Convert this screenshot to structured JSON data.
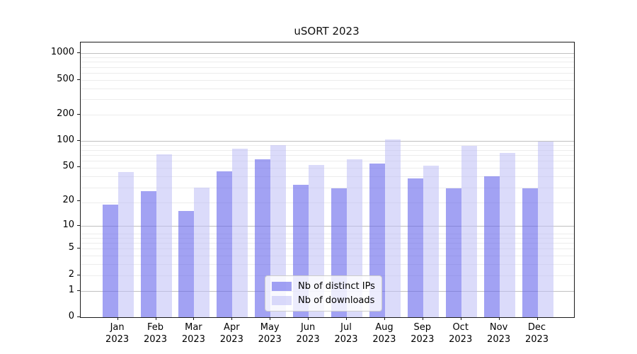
{
  "chart_data": {
    "type": "bar",
    "title": "uSORT 2023",
    "categories": [
      "Jan",
      "Feb",
      "Mar",
      "Apr",
      "May",
      "Jun",
      "Jul",
      "Aug",
      "Sep",
      "Oct",
      "Nov",
      "Dec"
    ],
    "year_label": "2023",
    "series": [
      {
        "name": "Nb of distinct IPs",
        "color": "rgba(100,100,235,0.6)",
        "values": [
          18,
          26,
          15,
          45,
          62,
          31,
          28,
          55,
          37,
          28,
          39,
          28
        ]
      },
      {
        "name": "Nb of downloads",
        "color": "rgba(190,190,245,0.55)",
        "values": [
          44,
          70,
          29,
          82,
          89,
          53,
          62,
          105,
          52,
          88,
          73,
          99
        ]
      }
    ],
    "yscale": "log1p",
    "ylim": [
      0,
      1330
    ],
    "ytick_values": [
      1000,
      500,
      200,
      100,
      50,
      20,
      10,
      5,
      2,
      1,
      0
    ],
    "major_grid_values": [
      1,
      10,
      100,
      1000
    ],
    "grid": true,
    "legend_position": "lower center"
  },
  "colors": {
    "major_grid": "#c0c0c0",
    "minor_grid": "#ececec",
    "spine": "#1a1a1a",
    "text": "#000000",
    "legend_border": "#cccccc"
  }
}
